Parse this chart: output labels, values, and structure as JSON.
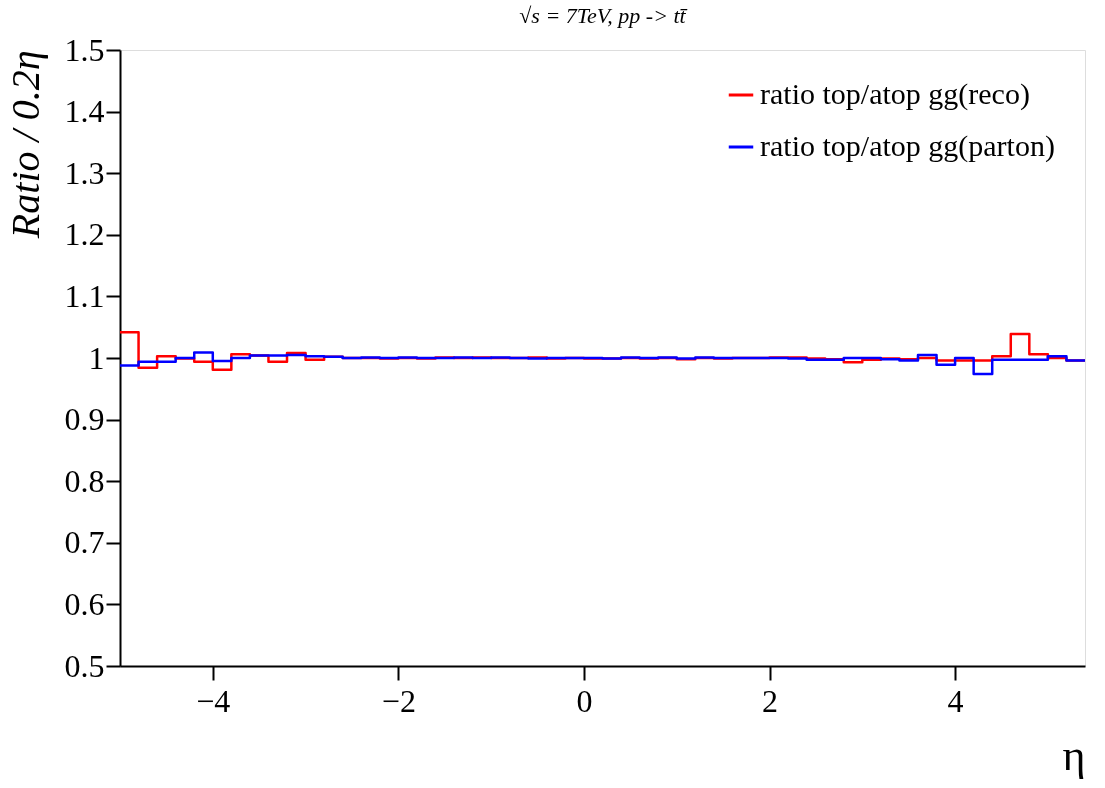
{
  "chart_data": {
    "type": "histogram",
    "title": "√s = 7TeV, pp -> tt̄",
    "xlabel": "η",
    "ylabel": "Ratio / 0.2η",
    "bins": [
      -5.0,
      -4.8,
      -4.6,
      -4.4,
      -4.2,
      -4.0,
      -3.8,
      -3.6,
      -3.4,
      -3.2,
      -3.0,
      -2.8,
      -2.6,
      -2.4,
      -2.2,
      -2.0,
      -1.8,
      -1.6,
      -1.4,
      -1.2,
      -1.0,
      -0.8,
      -0.6,
      -0.4,
      -0.2,
      0.0,
      0.2,
      0.4,
      0.6,
      0.8,
      1.0,
      1.2,
      1.4,
      1.6,
      1.8,
      2.0,
      2.2,
      2.4,
      2.6,
      2.8,
      3.0,
      3.2,
      3.4,
      3.6,
      3.8,
      4.0,
      4.2,
      4.4,
      4.6,
      4.8,
      5.0,
      5.2,
      5.4
    ],
    "series": [
      {
        "name": "ratio top/atop gg(reco)",
        "color": "#ff0000",
        "values": [
          1.042,
          0.984,
          1.003,
          0.999,
          0.994,
          0.981,
          1.006,
          1.004,
          0.994,
          1.008,
          0.997,
          1.002,
          1.0,
          1.0,
          0.999,
          1.0,
          0.999,
          1.001,
          1.0,
          1.001,
          1.0,
          1.0,
          1.001,
          0.999,
          1.0,
          0.999,
          0.999,
          1.0,
          0.999,
          1.0,
          0.998,
          1.0,
          0.999,
          1.0,
          1.0,
          1.001,
          1.001,
          0.999,
          0.998,
          0.993,
          0.997,
          0.999,
          0.998,
          1.0,
          0.996,
          0.996,
          0.996,
          1.003,
          1.039,
          1.006,
          1.0,
          0.996
        ]
      },
      {
        "name": "ratio top/atop gg(parton)",
        "color": "#0000ff",
        "values": [
          0.988,
          0.994,
          0.994,
          1.0,
          1.009,
          0.995,
          1.0,
          1.004,
          1.004,
          1.005,
          1.003,
          1.002,
          1.0,
          1.001,
          1.0,
          1.001,
          1.0,
          1.0,
          1.001,
          1.0,
          1.001,
          1.0,
          0.999,
          1.0,
          1.0,
          1.0,
          0.999,
          1.001,
          1.0,
          1.001,
          0.999,
          1.001,
          1.0,
          1.0,
          1.0,
          1.0,
          0.999,
          0.997,
          0.997,
          1.0,
          1.0,
          0.998,
          0.996,
          1.005,
          0.989,
          1.0,
          0.974,
          0.997,
          0.997,
          0.997,
          1.003,
          0.996
        ]
      }
    ],
    "xlim": [
      -5.0,
      5.4
    ],
    "xticks": [
      -4,
      -2,
      0,
      2,
      4
    ],
    "ylim": [
      0.5,
      1.5
    ],
    "yticks": [
      0.5,
      0.6,
      0.7,
      0.8,
      0.9,
      1,
      1.1,
      1.2,
      1.3,
      1.4,
      1.5
    ],
    "grid": false,
    "legend": "top right"
  }
}
